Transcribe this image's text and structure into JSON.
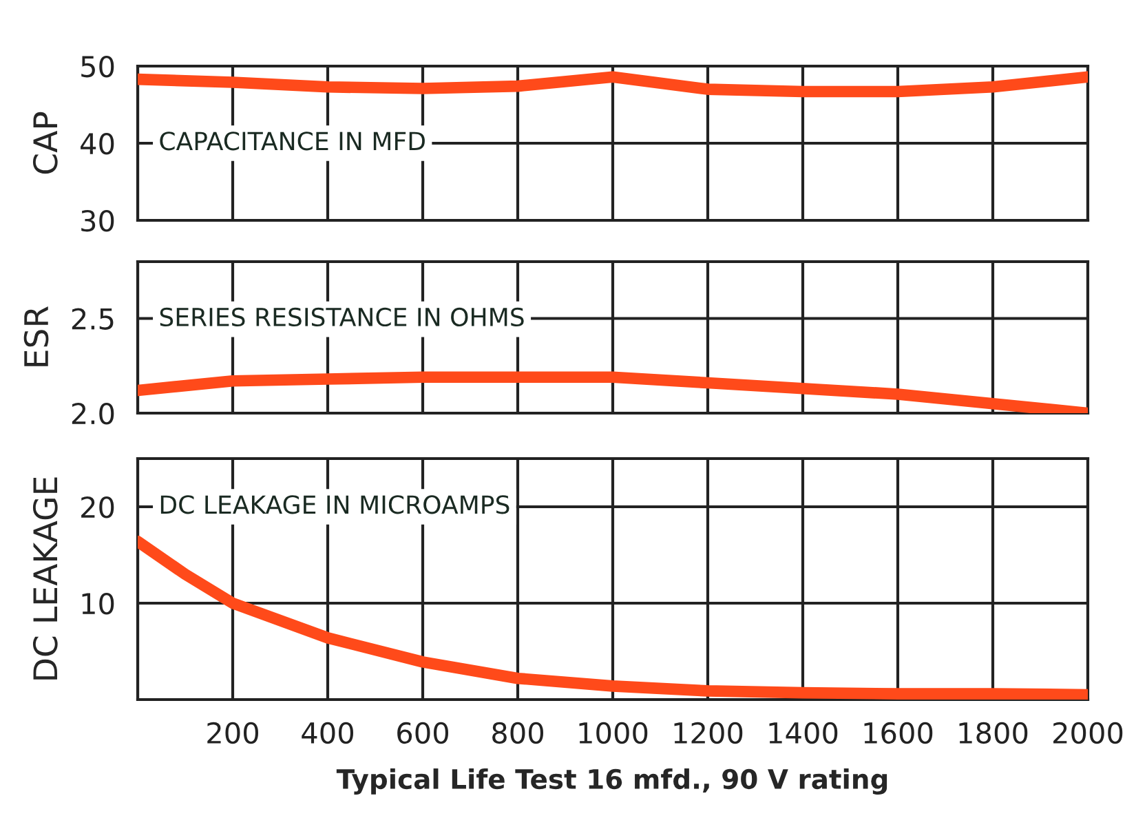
{
  "chart_data": [
    {
      "type": "line",
      "ylabel": "CAP",
      "annotations": [
        "CAPACITANCE IN MFD"
      ],
      "x": [
        0,
        200,
        400,
        600,
        800,
        1000,
        1200,
        1400,
        1600,
        1800,
        2000
      ],
      "series": [
        {
          "color": "#ff4a1a",
          "values": [
            48.3,
            47.9,
            47.3,
            47.1,
            47.4,
            48.6,
            47.0,
            46.7,
            46.7,
            47.3,
            48.6
          ]
        }
      ],
      "xlim": [
        0,
        2000
      ],
      "xticks": [
        0,
        200,
        400,
        600,
        800,
        1000,
        1200,
        1400,
        1600,
        1800,
        2000
      ],
      "ylim": [
        30,
        50
      ],
      "yticks": [
        30,
        40,
        50
      ],
      "grid": true,
      "tick_labels": "y"
    },
    {
      "type": "line",
      "ylabel": "ESR",
      "annotations": [
        "SERIES RESISTANCE IN OHMS"
      ],
      "x": [
        0,
        200,
        400,
        600,
        800,
        1000,
        1200,
        1400,
        1600,
        1800,
        2000
      ],
      "series": [
        {
          "color": "#ff4a1a",
          "values": [
            2.12,
            2.17,
            2.18,
            2.19,
            2.19,
            2.19,
            2.16,
            2.13,
            2.1,
            2.05,
            2.0
          ]
        }
      ],
      "xlim": [
        0,
        2000
      ],
      "xticks": [
        0,
        200,
        400,
        600,
        800,
        1000,
        1200,
        1400,
        1600,
        1800,
        2000
      ],
      "ylim": [
        2.0,
        2.8
      ],
      "yticks": [
        {
          "value": 2.0,
          "label": "2.0"
        },
        2.5
      ],
      "grid": true,
      "tick_labels": "y"
    },
    {
      "type": "line",
      "ylabel": "DC LEAKAGE",
      "xlabel": "Typical Life Test 16 mfd., 90 V rating",
      "annotations": [
        "DC LEAKAGE IN MICROAMPS"
      ],
      "x": [
        0,
        100,
        200,
        400,
        600,
        800,
        1000,
        1200,
        1400,
        1600,
        1800,
        2000
      ],
      "series": [
        {
          "color": "#ff4a1a",
          "values": [
            16.4,
            13.0,
            10.0,
            6.4,
            3.9,
            2.2,
            1.4,
            0.9,
            0.7,
            0.6,
            0.6,
            0.5
          ]
        }
      ],
      "xlim": [
        0,
        2000
      ],
      "xticks": [
        {
          "value": 0,
          "label": null
        },
        200,
        400,
        600,
        800,
        1000,
        1200,
        1400,
        1600,
        1800,
        2000
      ],
      "ylim": [
        0,
        25
      ],
      "yticks": [
        {
          "value": 0,
          "label": null
        },
        10,
        20
      ],
      "grid": true
    }
  ]
}
